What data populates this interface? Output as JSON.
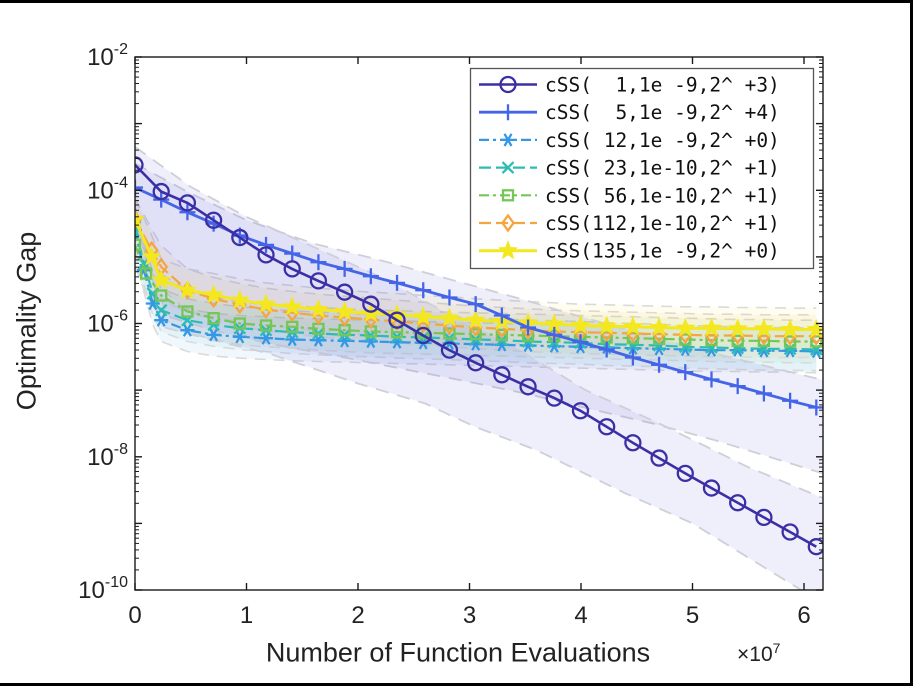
{
  "chart_data": {
    "type": "line",
    "title": "",
    "xlabel": "Number of Function Evaluations",
    "ylabel": "Optimality Gap",
    "x_exponent_base": "×10",
    "x_exponent_power": "7",
    "x_units": "1e7 function evaluations",
    "xlim": [
      0,
      6.17
    ],
    "ylim_log10": [
      -10,
      -2
    ],
    "x_ticks": [
      0,
      1,
      2,
      3,
      4,
      5,
      6
    ],
    "y_tick_label_exponents": [
      -2,
      -4,
      -6,
      -8,
      -10
    ],
    "y_tick_mantissa": "10",
    "grid": false,
    "legend_position": "upper right",
    "point_format": "[x_in_1e7_evals, log10_optimality_gap]",
    "series": [
      {
        "label": "cSS(  1,1e -9,2^ +3)",
        "color": "#3b2fa5",
        "marker": "circle",
        "line_style": "solid",
        "points": [
          [
            0,
            -3.62
          ],
          [
            0.235,
            -4.02
          ],
          [
            0.47,
            -4.19
          ],
          [
            0.705,
            -4.45
          ],
          [
            0.94,
            -4.71
          ],
          [
            1.175,
            -4.97
          ],
          [
            1.41,
            -5.18
          ],
          [
            1.645,
            -5.36
          ],
          [
            1.88,
            -5.53
          ],
          [
            2.115,
            -5.71
          ],
          [
            2.35,
            -5.95
          ],
          [
            2.585,
            -6.18
          ],
          [
            2.82,
            -6.4
          ],
          [
            3.055,
            -6.59
          ],
          [
            3.29,
            -6.77
          ],
          [
            3.525,
            -6.95
          ],
          [
            3.76,
            -7.12
          ],
          [
            3.995,
            -7.31
          ],
          [
            4.23,
            -7.55
          ],
          [
            4.465,
            -7.79
          ],
          [
            4.7,
            -8.02
          ],
          [
            4.935,
            -8.25
          ],
          [
            5.17,
            -8.47
          ],
          [
            5.405,
            -8.69
          ],
          [
            5.64,
            -8.91
          ],
          [
            5.875,
            -9.13
          ],
          [
            6.11,
            -9.35
          ]
        ]
      },
      {
        "label": "cSS(  5,1e -9,2^ +4)",
        "color": "#4465e8",
        "marker": "plus",
        "line_style": "solid",
        "points": [
          [
            0,
            -3.96
          ],
          [
            0.235,
            -4.14
          ],
          [
            0.47,
            -4.33
          ],
          [
            0.705,
            -4.5
          ],
          [
            0.94,
            -4.68
          ],
          [
            1.175,
            -4.82
          ],
          [
            1.41,
            -4.95
          ],
          [
            1.645,
            -5.08
          ],
          [
            1.88,
            -5.18
          ],
          [
            2.115,
            -5.29
          ],
          [
            2.35,
            -5.39
          ],
          [
            2.585,
            -5.5
          ],
          [
            2.82,
            -5.61
          ],
          [
            3.055,
            -5.71
          ],
          [
            3.29,
            -5.88
          ],
          [
            3.525,
            -6.06
          ],
          [
            3.76,
            -6.17
          ],
          [
            3.995,
            -6.28
          ],
          [
            4.23,
            -6.39
          ],
          [
            4.465,
            -6.51
          ],
          [
            4.7,
            -6.62
          ],
          [
            4.935,
            -6.73
          ],
          [
            5.17,
            -6.84
          ],
          [
            5.405,
            -6.94
          ],
          [
            5.64,
            -7.05
          ],
          [
            5.875,
            -7.16
          ],
          [
            6.11,
            -7.26
          ]
        ]
      },
      {
        "label": "cSS( 12,1e -9,2^ +0)",
        "color": "#3498e5",
        "marker": "asterisk",
        "line_style": "dashdot",
        "points": [
          [
            0,
            -4.6
          ],
          [
            0.08,
            -5.2
          ],
          [
            0.16,
            -5.7
          ],
          [
            0.235,
            -5.95
          ],
          [
            0.47,
            -6.1
          ],
          [
            0.705,
            -6.17
          ],
          [
            0.94,
            -6.2
          ],
          [
            1.175,
            -6.22
          ],
          [
            1.41,
            -6.24
          ],
          [
            1.645,
            -6.25
          ],
          [
            1.88,
            -6.26
          ],
          [
            2.115,
            -6.27
          ],
          [
            2.35,
            -6.28
          ],
          [
            2.585,
            -6.29
          ],
          [
            2.82,
            -6.3
          ],
          [
            3.055,
            -6.31
          ],
          [
            3.29,
            -6.32
          ],
          [
            3.525,
            -6.33
          ],
          [
            3.76,
            -6.34
          ],
          [
            3.995,
            -6.35
          ],
          [
            4.23,
            -6.36
          ],
          [
            4.465,
            -6.37
          ],
          [
            4.7,
            -6.38
          ],
          [
            4.935,
            -6.39
          ],
          [
            5.17,
            -6.4
          ],
          [
            5.405,
            -6.4
          ],
          [
            5.64,
            -6.41
          ],
          [
            5.875,
            -6.41
          ],
          [
            6.11,
            -6.42
          ]
        ]
      },
      {
        "label": "cSS( 23,1e-10,2^ +1)",
        "color": "#2bbcb4",
        "marker": "x",
        "line_style": "dashed",
        "points": [
          [
            0,
            -4.55
          ],
          [
            0.08,
            -5.1
          ],
          [
            0.16,
            -5.55
          ],
          [
            0.235,
            -5.8
          ],
          [
            0.47,
            -5.95
          ],
          [
            0.705,
            -6.02
          ],
          [
            0.94,
            -6.07
          ],
          [
            1.175,
            -6.1
          ],
          [
            1.41,
            -6.13
          ],
          [
            1.645,
            -6.15
          ],
          [
            1.88,
            -6.17
          ],
          [
            2.115,
            -6.18
          ],
          [
            2.35,
            -6.2
          ],
          [
            2.585,
            -6.21
          ],
          [
            2.82,
            -6.22
          ],
          [
            3.055,
            -6.24
          ],
          [
            3.29,
            -6.25
          ],
          [
            3.525,
            -6.27
          ],
          [
            3.76,
            -6.28
          ],
          [
            3.995,
            -6.29
          ],
          [
            4.23,
            -6.31
          ],
          [
            4.465,
            -6.32
          ],
          [
            4.7,
            -6.33
          ],
          [
            4.935,
            -6.35
          ],
          [
            5.17,
            -6.36
          ],
          [
            5.405,
            -6.37
          ],
          [
            5.64,
            -6.38
          ],
          [
            5.875,
            -6.38
          ],
          [
            6.11,
            -6.39
          ]
        ]
      },
      {
        "label": "cSS( 56,1e-10,2^ +1)",
        "color": "#74c655",
        "marker": "square",
        "line_style": "dashdot",
        "points": [
          [
            0,
            -4.82
          ],
          [
            0.1,
            -5.25
          ],
          [
            0.235,
            -5.58
          ],
          [
            0.47,
            -5.82
          ],
          [
            0.705,
            -5.92
          ],
          [
            0.94,
            -6.0
          ],
          [
            1.175,
            -6.03
          ],
          [
            1.41,
            -6.05
          ],
          [
            1.645,
            -6.08
          ],
          [
            1.88,
            -6.1
          ],
          [
            2.115,
            -6.12
          ],
          [
            2.35,
            -6.13
          ],
          [
            2.585,
            -6.14
          ],
          [
            2.82,
            -6.15
          ],
          [
            3.055,
            -6.16
          ],
          [
            3.29,
            -6.17
          ],
          [
            3.525,
            -6.18
          ],
          [
            3.76,
            -6.19
          ],
          [
            3.995,
            -6.2
          ],
          [
            4.23,
            -6.21
          ],
          [
            4.465,
            -6.22
          ],
          [
            4.7,
            -6.23
          ],
          [
            4.935,
            -6.24
          ],
          [
            5.17,
            -6.25
          ],
          [
            5.405,
            -6.26
          ],
          [
            5.64,
            -6.26
          ],
          [
            5.875,
            -6.27
          ],
          [
            6.11,
            -6.27
          ]
        ]
      },
      {
        "label": "cSS(112,1e-10,2^ +1)",
        "color": "#f5a53f",
        "marker": "diamond",
        "line_style": "dashed",
        "points": [
          [
            0,
            -4.44
          ],
          [
            0.15,
            -4.9
          ],
          [
            0.235,
            -5.15
          ],
          [
            0.47,
            -5.5
          ],
          [
            0.705,
            -5.63
          ],
          [
            0.94,
            -5.72
          ],
          [
            1.175,
            -5.79
          ],
          [
            1.41,
            -5.84
          ],
          [
            1.645,
            -5.88
          ],
          [
            1.88,
            -5.91
          ],
          [
            2.115,
            -5.94
          ],
          [
            2.35,
            -5.97
          ],
          [
            2.585,
            -6.0
          ],
          [
            2.82,
            -6.03
          ],
          [
            3.055,
            -6.06
          ],
          [
            3.29,
            -6.08
          ],
          [
            3.525,
            -6.1
          ],
          [
            3.76,
            -6.12
          ],
          [
            3.995,
            -6.13
          ],
          [
            4.23,
            -6.14
          ],
          [
            4.465,
            -6.15
          ],
          [
            4.7,
            -6.16
          ],
          [
            4.935,
            -6.17
          ],
          [
            5.17,
            -6.18
          ],
          [
            5.405,
            -6.18
          ],
          [
            5.64,
            -6.19
          ],
          [
            5.875,
            -6.19
          ],
          [
            6.11,
            -6.19
          ]
        ]
      },
      {
        "label": "cSS(135,1e -9,2^ +0)",
        "color": "#f3e71f",
        "marker": "pentagram",
        "line_style": "solid",
        "points": [
          [
            0,
            -4.44
          ],
          [
            0.15,
            -5.0
          ],
          [
            0.235,
            -5.35
          ],
          [
            0.47,
            -5.5
          ],
          [
            0.705,
            -5.57
          ],
          [
            0.94,
            -5.65
          ],
          [
            1.175,
            -5.71
          ],
          [
            1.41,
            -5.75
          ],
          [
            1.645,
            -5.79
          ],
          [
            1.88,
            -5.82
          ],
          [
            2.115,
            -5.85
          ],
          [
            2.35,
            -5.87
          ],
          [
            2.585,
            -5.9
          ],
          [
            2.82,
            -5.92
          ],
          [
            3.055,
            -5.95
          ],
          [
            3.29,
            -5.97
          ],
          [
            3.525,
            -5.99
          ],
          [
            3.76,
            -6.01
          ],
          [
            3.995,
            -6.03
          ],
          [
            4.23,
            -6.04
          ],
          [
            4.465,
            -6.05
          ],
          [
            4.7,
            -6.06
          ],
          [
            4.935,
            -6.07
          ],
          [
            5.17,
            -6.07
          ],
          [
            5.405,
            -6.08
          ],
          [
            5.64,
            -6.08
          ],
          [
            5.875,
            -6.09
          ],
          [
            6.11,
            -6.09
          ]
        ]
      }
    ],
    "uncertainty_bands": [
      {
        "series": 0,
        "fill": "rgba(95,95,215,0.10)",
        "edge": "#cfcfd8",
        "upper": [
          [
            0,
            -3.35
          ],
          [
            0.5,
            -3.95
          ],
          [
            1,
            -4.4
          ],
          [
            1.6,
            -4.85
          ],
          [
            2.2,
            -5.3
          ],
          [
            2.8,
            -5.85
          ],
          [
            3.4,
            -6.35
          ],
          [
            4.04,
            -7.0
          ],
          [
            4.7,
            -7.5
          ],
          [
            5.49,
            -8.15
          ],
          [
            6.17,
            -8.62
          ]
        ],
        "lower": [
          [
            0,
            -4.5
          ],
          [
            0.12,
            -5.4
          ],
          [
            0.24,
            -6.05
          ],
          [
            0.7,
            -6.25
          ],
          [
            1.2,
            -6.45
          ],
          [
            2,
            -6.9
          ],
          [
            2.6,
            -7.2
          ],
          [
            3.05,
            -7.55
          ],
          [
            3.6,
            -7.9
          ],
          [
            4.4,
            -8.55
          ],
          [
            5,
            -9.0
          ],
          [
            5.73,
            -9.75
          ],
          [
            6.17,
            -10.2
          ]
        ]
      },
      {
        "series": 1,
        "fill": "rgba(95,95,215,0.10)",
        "edge": "#cfcfd8",
        "upper": [
          [
            0,
            -3.6
          ],
          [
            0.5,
            -4.05
          ],
          [
            1,
            -4.45
          ],
          [
            1.6,
            -4.8
          ],
          [
            2.2,
            -5.05
          ],
          [
            3.07,
            -5.45
          ],
          [
            3.5,
            -5.65
          ],
          [
            4,
            -5.9
          ],
          [
            4.64,
            -6.2
          ],
          [
            5.2,
            -6.45
          ],
          [
            6.17,
            -6.85
          ]
        ],
        "lower": [
          [
            0,
            -4.35
          ],
          [
            0.12,
            -5.2
          ],
          [
            0.3,
            -5.9
          ],
          [
            0.7,
            -6.1
          ],
          [
            1.2,
            -6.3
          ],
          [
            2,
            -6.55
          ],
          [
            3.07,
            -6.9
          ],
          [
            3.5,
            -7.05
          ],
          [
            4,
            -7.25
          ],
          [
            4.64,
            -7.5
          ],
          [
            5.2,
            -7.75
          ],
          [
            6.17,
            -8.25
          ]
        ]
      }
    ],
    "flat_band_halfwidth_decades": 0.32,
    "flat_band_edge_color": "#dadada"
  },
  "legend": {
    "entries": [
      "cSS(  1,1e -9,2^ +3)",
      "cSS(  5,1e -9,2^ +4)",
      "cSS( 12,1e -9,2^ +0)",
      "cSS( 23,1e-10,2^ +1)",
      "cSS( 56,1e-10,2^ +1)",
      "cSS(112,1e-10,2^ +1)",
      "cSS(135,1e -9,2^ +0)"
    ]
  },
  "colors": {
    "axis": "#1a1a1a",
    "text": "#222222",
    "background": "#ffffff",
    "band_fill": "rgba(95,95,215,0.10)",
    "band_edge": "#cfcfd8"
  }
}
